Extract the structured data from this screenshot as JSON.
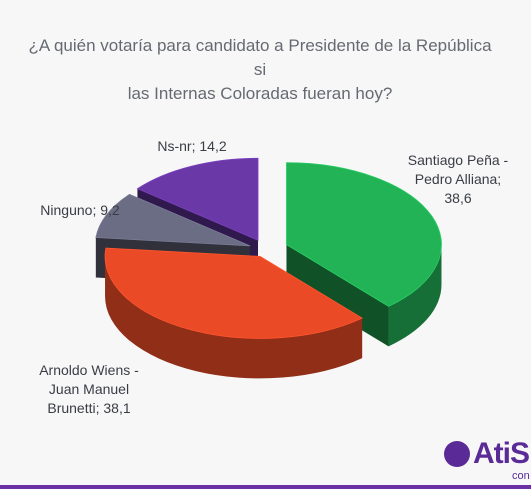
{
  "chart_data": {
    "type": "pie",
    "title_lines": [
      "¿A quién votaría para candidato a Presidente de la República si",
      "las Internas Coloradas fueran hoy?"
    ],
    "slices": [
      {
        "label_lines": [
          "Santiago Peña -",
          "Pedro Alliana;",
          "38,6"
        ],
        "value": 38.6,
        "color": "#23b357"
      },
      {
        "label_lines": [
          "Arnoldo Wiens -",
          "Juan Manuel",
          "Brunetti; 38,1"
        ],
        "value": 38.1,
        "color": "#ea4a26"
      },
      {
        "label_lines": [
          "Ninguno; 9,2"
        ],
        "value": 9.2,
        "color": "#6b6d84"
      },
      {
        "label_lines": [
          "Ns-nr; 14,2"
        ],
        "value": 14.2,
        "color": "#6b38a8"
      }
    ]
  },
  "logo": {
    "text": "AtiSn",
    "sub": "con"
  }
}
